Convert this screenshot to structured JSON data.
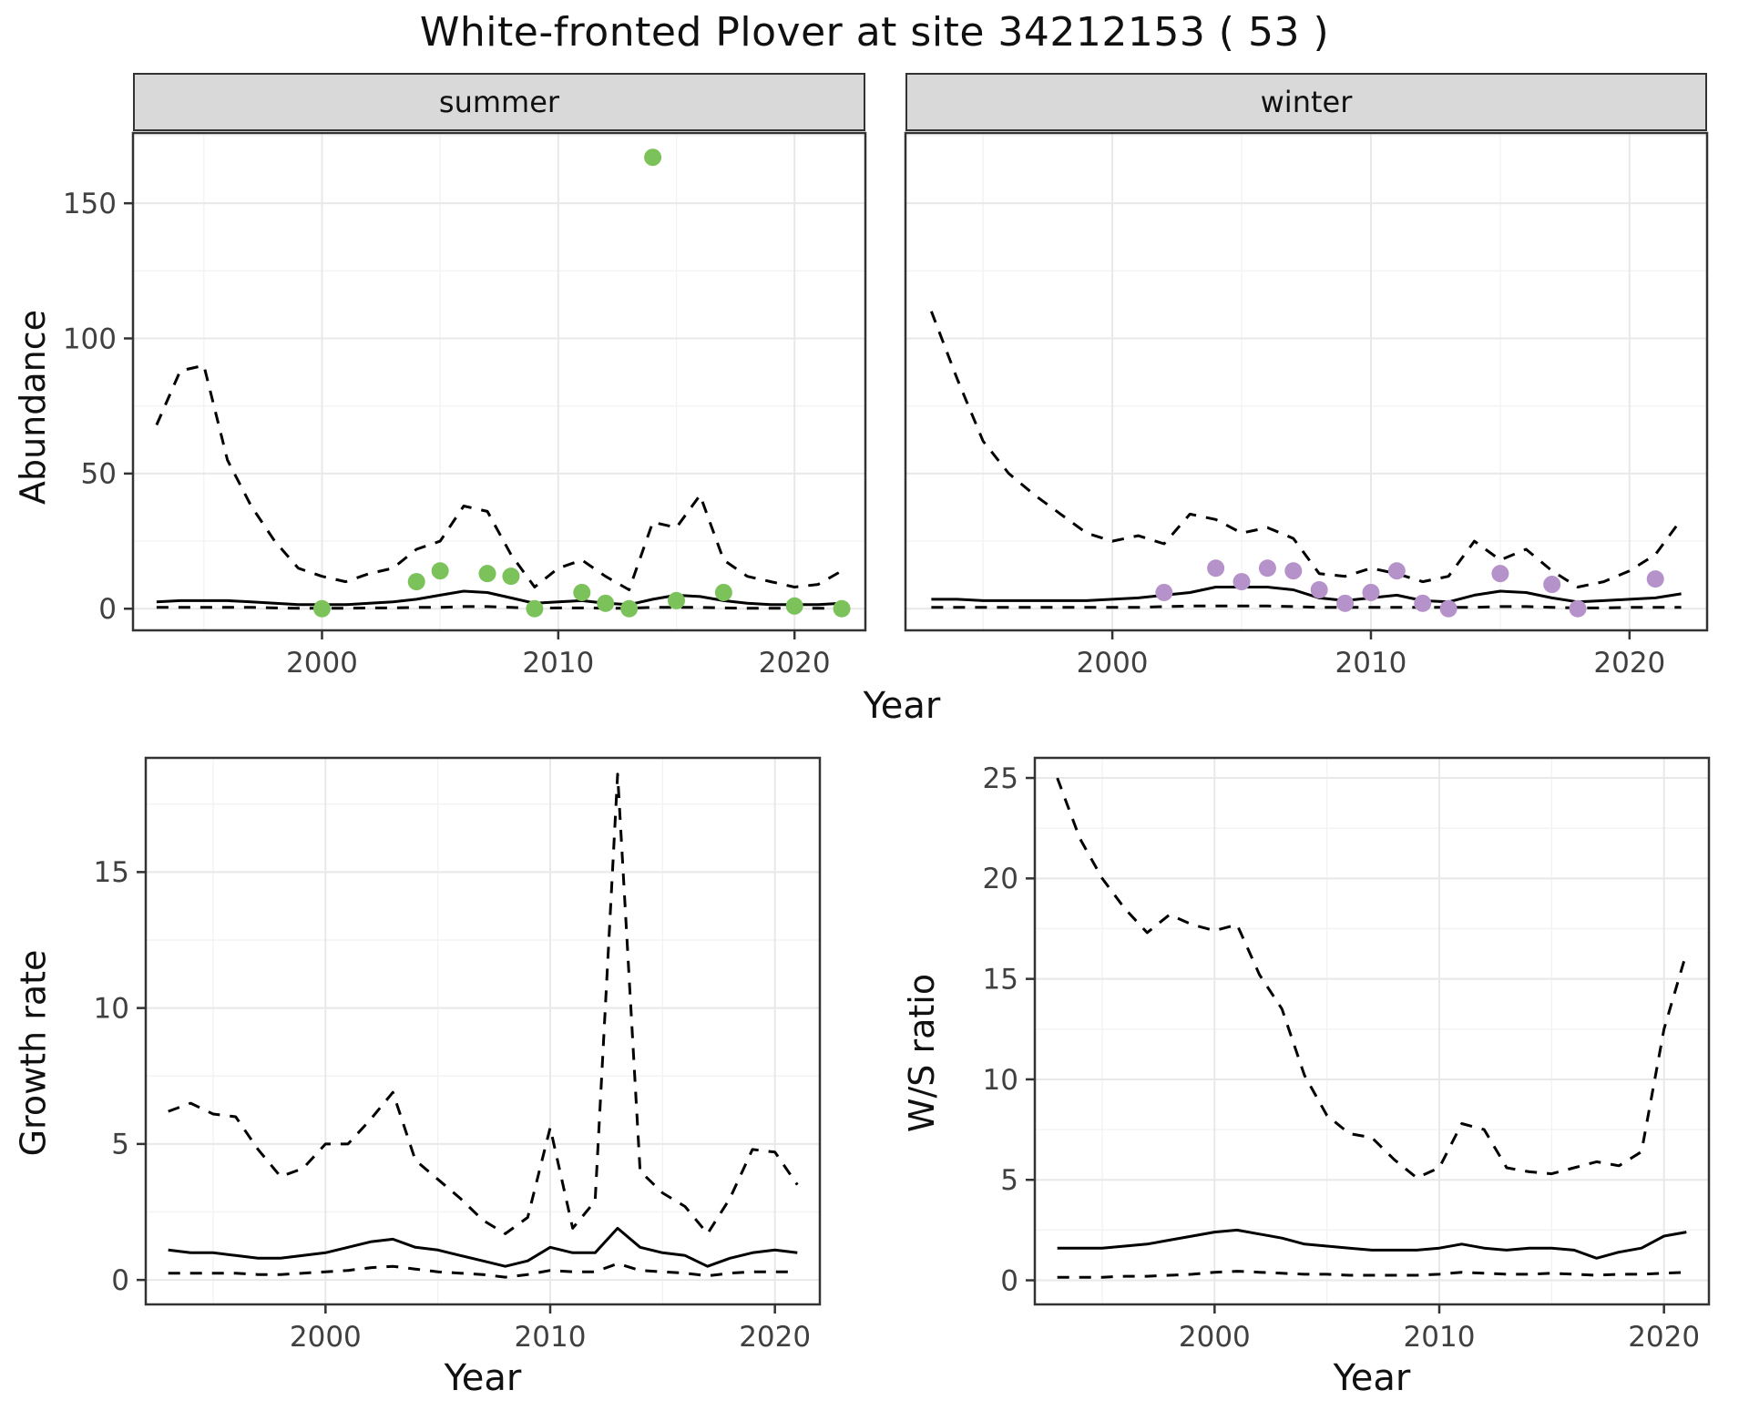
{
  "figure": {
    "title": "White-fronted Plover at site 34212153 ( 53 )"
  },
  "axes": {
    "abundance_y_label": "Abundance",
    "abundance_x_label": "Year",
    "growth_y_label": "Growth rate",
    "growth_x_label": "Year",
    "ratio_y_label": "W/S ratio",
    "ratio_x_label": "Year"
  },
  "facets": {
    "summer_label": "summer",
    "winter_label": "winter"
  },
  "colors": {
    "summer_points": "#7CC25B",
    "winter_points": "#B592C9",
    "line": "#000000",
    "strip_background": "#D9D9D9",
    "panel_border": "#333333",
    "grid_major": "#E8E8E8",
    "grid_minor": "#F3F3F3",
    "tick_label": "#404040"
  },
  "chart_data": [
    {
      "id": "abundance_summer",
      "type": "line",
      "facet_label": "summer",
      "title": "White-fronted Plover at site 34212153 ( 53 )",
      "xlabel": "Year",
      "ylabel": "Abundance",
      "xlim": [
        1992,
        2023
      ],
      "ylim": [
        -8,
        176
      ],
      "xticks": [
        2000,
        2010,
        2020
      ],
      "yticks": [
        0,
        50,
        100,
        150
      ],
      "show_y_tick_labels": true,
      "grid": true,
      "legend": "none",
      "x_years": [
        1993,
        1994,
        1995,
        1996,
        1997,
        1998,
        1999,
        2000,
        2001,
        2002,
        2003,
        2004,
        2005,
        2006,
        2007,
        2008,
        2009,
        2010,
        2011,
        2012,
        2013,
        2014,
        2015,
        2016,
        2017,
        2018,
        2019,
        2020,
        2021,
        2022
      ],
      "series": [
        {
          "name": "upper_ci",
          "style": "dashed",
          "values": [
            68,
            88,
            90,
            55,
            38,
            25,
            15,
            12,
            10,
            13,
            15,
            22,
            25,
            38,
            36,
            20,
            8,
            15,
            18,
            12,
            7,
            32,
            30,
            42,
            18,
            12,
            10,
            8,
            9,
            14
          ]
        },
        {
          "name": "estimate",
          "style": "solid",
          "values": [
            2.5,
            3,
            3,
            3,
            2.5,
            2,
            1.5,
            1.5,
            1.5,
            2,
            2.5,
            3.5,
            5,
            6.5,
            6,
            4,
            2,
            2.5,
            3,
            2,
            1.5,
            3.5,
            5,
            4.5,
            3,
            2,
            1.5,
            1.5,
            1.5,
            2
          ]
        },
        {
          "name": "lower_ci",
          "style": "dashed",
          "values": [
            0.5,
            0.5,
            0.5,
            0.5,
            0.5,
            0.3,
            0.2,
            0.2,
            0.2,
            0.3,
            0.3,
            0.5,
            0.5,
            0.8,
            0.8,
            0.5,
            0.2,
            0.3,
            0.3,
            0.2,
            0.2,
            0.5,
            0.5,
            0.5,
            0.3,
            0.2,
            0.2,
            0.2,
            0.2,
            0.2
          ]
        }
      ],
      "points": {
        "name": "observed_counts_summer",
        "color": "#7CC25B",
        "x": [
          2000,
          2004,
          2005,
          2007,
          2008,
          2009,
          2011,
          2012,
          2013,
          2014,
          2015,
          2017,
          2020,
          2022
        ],
        "y": [
          0,
          10,
          14,
          13,
          12,
          0,
          6,
          2,
          0,
          167,
          3,
          6,
          1,
          0
        ]
      }
    },
    {
      "id": "abundance_winter",
      "type": "line",
      "facet_label": "winter",
      "title": "",
      "xlabel": "Year",
      "ylabel": "Abundance",
      "xlim": [
        1992,
        2023
      ],
      "ylim": [
        -8,
        176
      ],
      "xticks": [
        2000,
        2010,
        2020
      ],
      "yticks": [
        0,
        50,
        100,
        150
      ],
      "show_y_tick_labels": false,
      "grid": true,
      "legend": "none",
      "x_years": [
        1993,
        1994,
        1995,
        1996,
        1997,
        1998,
        1999,
        2000,
        2001,
        2002,
        2003,
        2004,
        2005,
        2006,
        2007,
        2008,
        2009,
        2010,
        2011,
        2012,
        2013,
        2014,
        2015,
        2016,
        2017,
        2018,
        2019,
        2020,
        2021,
        2022
      ],
      "series": [
        {
          "name": "upper_ci",
          "style": "dashed",
          "values": [
            110,
            85,
            62,
            50,
            42,
            35,
            28,
            25,
            27,
            24,
            35,
            33,
            28,
            30,
            26,
            13,
            12,
            15,
            13,
            10,
            12,
            25,
            18,
            22,
            14,
            8,
            10,
            14,
            20,
            33
          ]
        },
        {
          "name": "estimate",
          "style": "solid",
          "values": [
            3.5,
            3.5,
            3,
            3,
            3,
            3,
            3,
            3.5,
            4,
            5,
            6,
            8,
            8,
            8,
            7,
            4,
            3,
            4,
            5,
            3,
            2.5,
            5,
            6.5,
            6,
            4,
            2.5,
            3,
            3.5,
            4,
            5.5
          ]
        },
        {
          "name": "lower_ci",
          "style": "dashed",
          "values": [
            0.5,
            0.5,
            0.5,
            0.5,
            0.5,
            0.5,
            0.5,
            0.5,
            0.5,
            0.8,
            1,
            1,
            1,
            1,
            0.8,
            0.5,
            0.5,
            0.5,
            0.5,
            0.5,
            0.5,
            0.5,
            0.8,
            0.8,
            0.5,
            0.3,
            0.3,
            0.5,
            0.5,
            0.5
          ]
        }
      ],
      "points": {
        "name": "observed_counts_winter",
        "color": "#B592C9",
        "x": [
          2002,
          2004,
          2005,
          2006,
          2007,
          2008,
          2009,
          2010,
          2011,
          2012,
          2013,
          2015,
          2017,
          2018,
          2021
        ],
        "y": [
          6,
          15,
          10,
          15,
          14,
          7,
          2,
          6,
          14,
          2,
          0,
          13,
          9,
          0,
          11
        ]
      }
    },
    {
      "id": "growth_rate",
      "type": "line",
      "facet_label": "",
      "title": "",
      "xlabel": "Year",
      "ylabel": "Growth rate",
      "xlim": [
        1992,
        2022
      ],
      "ylim": [
        -0.9,
        19.2
      ],
      "xticks": [
        2000,
        2010,
        2020
      ],
      "yticks": [
        0,
        5,
        10,
        15
      ],
      "show_y_tick_labels": true,
      "grid": true,
      "legend": "none",
      "x_years": [
        1993,
        1994,
        1995,
        1996,
        1997,
        1998,
        1999,
        2000,
        2001,
        2002,
        2003,
        2004,
        2005,
        2006,
        2007,
        2008,
        2009,
        2010,
        2011,
        2012,
        2013,
        2014,
        2015,
        2016,
        2017,
        2018,
        2019,
        2020,
        2021
      ],
      "series": [
        {
          "name": "upper_ci",
          "style": "dashed",
          "values": [
            6.2,
            6.5,
            6.1,
            6.0,
            4.8,
            3.8,
            4.1,
            5.0,
            5.0,
            5.9,
            6.9,
            4.4,
            3.7,
            3.0,
            2.2,
            1.7,
            2.3,
            5.6,
            1.9,
            2.9,
            18.6,
            4.0,
            3.2,
            2.7,
            1.7,
            3.0,
            4.8,
            4.7,
            3.5
          ]
        },
        {
          "name": "estimate",
          "style": "solid",
          "values": [
            1.1,
            1.0,
            1.0,
            0.9,
            0.8,
            0.8,
            0.9,
            1.0,
            1.2,
            1.4,
            1.5,
            1.2,
            1.1,
            0.9,
            0.7,
            0.5,
            0.7,
            1.2,
            1.0,
            1.0,
            1.9,
            1.2,
            1.0,
            0.9,
            0.5,
            0.8,
            1.0,
            1.1,
            1.0
          ]
        },
        {
          "name": "lower_ci",
          "style": "dashed",
          "values": [
            0.25,
            0.25,
            0.25,
            0.25,
            0.2,
            0.2,
            0.25,
            0.3,
            0.35,
            0.45,
            0.5,
            0.4,
            0.3,
            0.25,
            0.2,
            0.1,
            0.2,
            0.35,
            0.3,
            0.3,
            0.6,
            0.35,
            0.3,
            0.25,
            0.15,
            0.25,
            0.3,
            0.3,
            0.3
          ]
        }
      ]
    },
    {
      "id": "ws_ratio",
      "type": "line",
      "facet_label": "",
      "title": "",
      "xlabel": "Year",
      "ylabel": "W/S ratio",
      "xlim": [
        1992,
        2022
      ],
      "ylim": [
        -1.2,
        26
      ],
      "xticks": [
        2000,
        2010,
        2020
      ],
      "yticks": [
        0,
        5,
        10,
        15,
        20,
        25
      ],
      "show_y_tick_labels": true,
      "grid": true,
      "legend": "none",
      "x_years": [
        1993,
        1994,
        1995,
        1996,
        1997,
        1998,
        1999,
        2000,
        2001,
        2002,
        2003,
        2004,
        2005,
        2006,
        2007,
        2008,
        2009,
        2010,
        2011,
        2012,
        2013,
        2014,
        2015,
        2016,
        2017,
        2018,
        2019,
        2020,
        2021
      ],
      "series": [
        {
          "name": "upper_ci",
          "style": "dashed",
          "values": [
            25.0,
            22.0,
            20.0,
            18.5,
            17.3,
            18.2,
            17.7,
            17.4,
            17.7,
            15.2,
            13.5,
            10.2,
            8.2,
            7.3,
            7.1,
            6.0,
            5.1,
            5.6,
            7.8,
            7.5,
            5.6,
            5.4,
            5.3,
            5.6,
            5.9,
            5.7,
            6.4,
            12.5,
            16.3
          ]
        },
        {
          "name": "estimate",
          "style": "solid",
          "values": [
            1.6,
            1.6,
            1.6,
            1.7,
            1.8,
            2.0,
            2.2,
            2.4,
            2.5,
            2.3,
            2.1,
            1.8,
            1.7,
            1.6,
            1.5,
            1.5,
            1.5,
            1.6,
            1.8,
            1.6,
            1.5,
            1.6,
            1.6,
            1.5,
            1.1,
            1.4,
            1.6,
            2.2,
            2.4
          ]
        },
        {
          "name": "lower_ci",
          "style": "dashed",
          "values": [
            0.15,
            0.15,
            0.15,
            0.2,
            0.2,
            0.25,
            0.3,
            0.4,
            0.45,
            0.4,
            0.35,
            0.3,
            0.3,
            0.25,
            0.25,
            0.25,
            0.25,
            0.3,
            0.4,
            0.35,
            0.3,
            0.3,
            0.35,
            0.3,
            0.25,
            0.3,
            0.3,
            0.35,
            0.4
          ]
        }
      ]
    }
  ]
}
